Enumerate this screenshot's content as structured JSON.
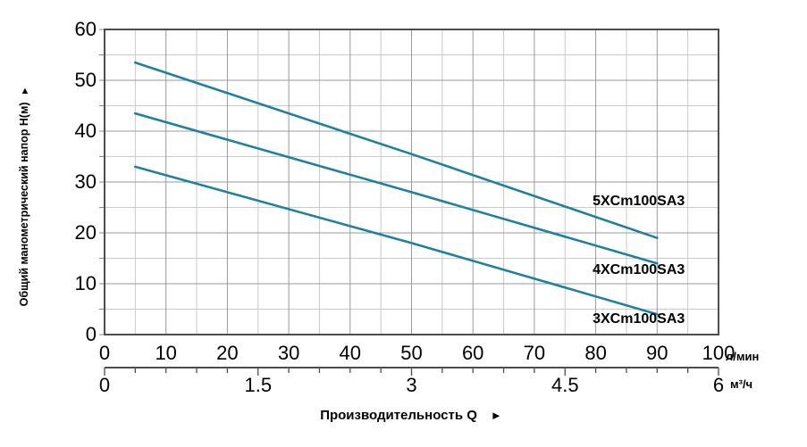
{
  "chart_data": {
    "type": "line",
    "xlabel": "Производительность Q",
    "ylabel": "Общий манометрический напор Н(м)",
    "icons": {
      "y_axis_arrow": "▲",
      "x_axis_arrow": "►"
    },
    "y_axis": {
      "range": [
        0,
        60
      ],
      "tick_values": [
        0,
        10,
        20,
        30,
        40,
        50,
        60
      ],
      "minor_step": 5
    },
    "x_axis_primary": {
      "unit": "л/мин",
      "range": [
        0,
        100
      ],
      "tick_values": [
        0,
        10,
        20,
        30,
        40,
        50,
        60,
        70,
        80,
        90,
        100
      ],
      "minor_step": 5
    },
    "x_axis_secondary": {
      "unit": "м³/ч",
      "range": [
        0,
        6
      ],
      "tick_labels": [
        "0",
        "1.5",
        "3",
        "4.5",
        "6"
      ],
      "tick_values": [
        0,
        1.5,
        3,
        4.5,
        6
      ],
      "minor_step": 0.3
    },
    "grid": true,
    "legend_position": "inline-labels",
    "series": [
      {
        "name": "5XCm100SA3",
        "points": [
          [
            5,
            53.5
          ],
          [
            50,
            35.5
          ],
          [
            90,
            19
          ]
        ],
        "label_at": {
          "q": 87,
          "h": 26.2
        }
      },
      {
        "name": "4XCm100SA3",
        "points": [
          [
            5,
            43.5
          ],
          [
            50,
            28
          ],
          [
            90,
            14
          ]
        ],
        "label_at": {
          "q": 87,
          "h": 12.6
        }
      },
      {
        "name": "3XCm100SA3",
        "points": [
          [
            5,
            33
          ],
          [
            50,
            18
          ],
          [
            90,
            4
          ]
        ],
        "label_at": {
          "q": 87,
          "h": 3.0
        }
      }
    ],
    "colors": {
      "curve": "#1e81a2",
      "grid_major": "#9a9a9a",
      "grid_minor": "#cacaca",
      "axis_border": "#4d4d4d",
      "text": "#000000"
    }
  }
}
